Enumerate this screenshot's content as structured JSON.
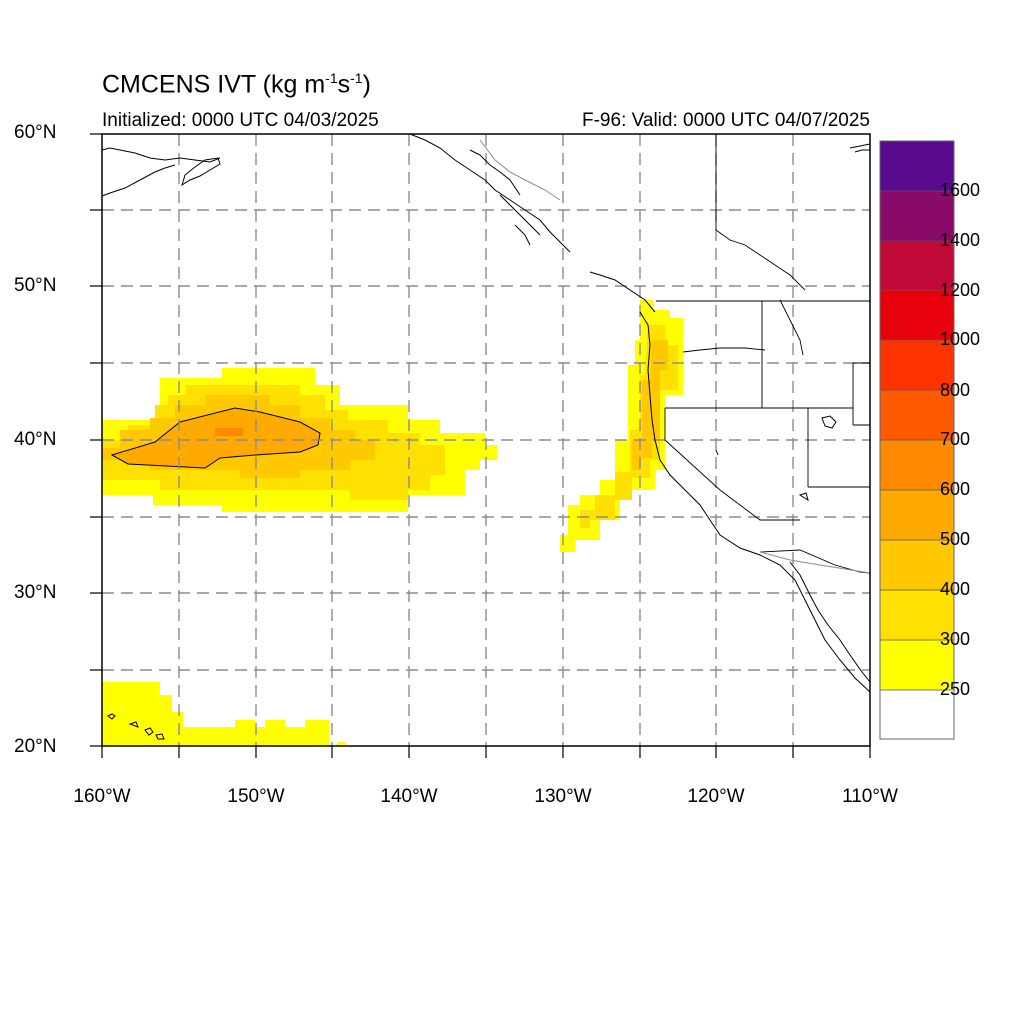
{
  "title": "CMCENS IVT (kg m",
  "title_sup1": "-1",
  "title_mid": "s",
  "title_sup2": "-1",
  "title_end": ")",
  "subtitle_left": "Initialized: 0000 UTC 04/03/2025",
  "subtitle_right": "F-96: Valid: 0000 UTC 04/07/2025",
  "lat_labels": [
    "60°N",
    "50°N",
    "40°N",
    "30°N",
    "20°N"
  ],
  "lon_labels": [
    "160°W",
    "150°W",
    "140°W",
    "130°W",
    "120°W",
    "110°W"
  ],
  "colorbar": {
    "labels": [
      "1600",
      "1400",
      "1200",
      "1000",
      "800",
      "700",
      "600",
      "500",
      "400",
      "300",
      "250"
    ],
    "colors": [
      "#5a0a8e",
      "#8a0a6a",
      "#c20a3a",
      "#e8000a",
      "#ff3300",
      "#ff5a00",
      "#ff8a00",
      "#ffaa00",
      "#ffc800",
      "#ffe000",
      "#ffff00",
      "#ffffff"
    ]
  },
  "chart_data": {
    "type": "heatmap",
    "variable": "IVT",
    "units": "kg m-1 s-1",
    "extent": {
      "lon": [
        -160,
        -110
      ],
      "lat": [
        20,
        60
      ]
    },
    "levels": [
      250,
      300,
      400,
      500,
      600,
      700,
      800,
      1000,
      1200,
      1400,
      1600
    ],
    "features": [
      {
        "name": "central-pacific-plume",
        "lon_range": [
          -160,
          -134
        ],
        "lat_range": [
          35.5,
          44.5
        ],
        "max_level": 500
      },
      {
        "name": "west-coast-plume",
        "lon_range": [
          -130,
          -122
        ],
        "lat_range": [
          33,
          49
        ],
        "max_level": 400
      },
      {
        "name": "hawaii-region",
        "lon_range": [
          -160,
          -145
        ],
        "lat_range": [
          20,
          24
        ],
        "max_level": 250
      }
    ]
  }
}
